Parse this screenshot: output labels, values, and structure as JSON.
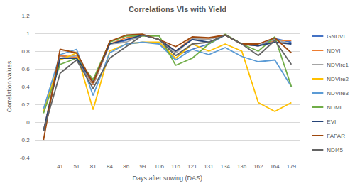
{
  "chart_data": {
    "type": "line",
    "title": "Correlations VIs with Yield",
    "x_label": "Days after sowing (DAS)",
    "y_label": "Correlation values",
    "categories": [
      null,
      "41",
      "51",
      "81",
      "84",
      "86",
      "99",
      "106",
      "116",
      "121",
      "131",
      "134",
      "136",
      "162",
      "164",
      "179"
    ],
    "ylim": [
      -0.4,
      1.2
    ],
    "yticks": [
      -0.4,
      -0.2,
      0,
      0.2,
      0.4,
      0.6,
      0.8,
      1,
      1.2
    ],
    "grid": true,
    "legend": "right",
    "series": [
      {
        "name": "GNDVI",
        "color": "#4472c4",
        "values": [
          -0.1,
          0.75,
          0.72,
          0.42,
          0.88,
          0.92,
          0.98,
          0.93,
          0.75,
          0.82,
          0.88,
          0.98,
          0.88,
          0.86,
          0.94,
          0.9
        ]
      },
      {
        "name": "NDVI",
        "color": "#ed7d31",
        "values": [
          -0.1,
          0.75,
          0.73,
          0.42,
          0.88,
          0.95,
          0.98,
          0.93,
          0.8,
          0.95,
          0.94,
          0.98,
          0.88,
          0.86,
          0.92,
          0.92
        ]
      },
      {
        "name": "NDVIre1",
        "color": "#a5a5a5",
        "values": [
          -0.1,
          0.72,
          0.75,
          0.43,
          0.88,
          0.9,
          0.98,
          0.93,
          0.78,
          0.94,
          0.93,
          0.98,
          0.88,
          0.86,
          0.93,
          0.88
        ]
      },
      {
        "name": "NDVIre2",
        "color": "#ffc000",
        "values": [
          0.12,
          0.7,
          0.78,
          0.14,
          0.8,
          0.88,
          0.9,
          0.9,
          0.72,
          0.88,
          0.8,
          0.88,
          0.8,
          0.22,
          0.12,
          0.22
        ]
      },
      {
        "name": "NDVIre3",
        "color": "#5b9bd5",
        "values": [
          0.15,
          0.76,
          0.82,
          0.3,
          0.78,
          0.88,
          0.9,
          0.88,
          0.7,
          0.82,
          0.76,
          0.84,
          0.74,
          0.68,
          0.7,
          0.4
        ]
      },
      {
        "name": "NDMI",
        "color": "#70ad47",
        "values": [
          0.1,
          0.65,
          0.72,
          0.48,
          0.9,
          0.97,
          0.97,
          0.97,
          0.64,
          0.72,
          0.88,
          0.99,
          0.88,
          0.8,
          0.96,
          0.4
        ]
      },
      {
        "name": "EVI",
        "color": "#264478",
        "values": [
          -0.1,
          0.72,
          0.72,
          0.45,
          0.88,
          0.93,
          0.98,
          0.93,
          0.8,
          0.93,
          0.9,
          0.98,
          0.88,
          0.86,
          0.9,
          0.88
        ]
      },
      {
        "name": "FAPAR",
        "color": "#9e480e",
        "values": [
          -0.2,
          0.82,
          0.78,
          0.44,
          0.91,
          0.98,
          0.99,
          0.93,
          0.85,
          0.96,
          0.95,
          0.98,
          0.88,
          0.88,
          0.95,
          0.78
        ]
      },
      {
        "name": "NDI45",
        "color": "#636363",
        "values": [
          -0.1,
          0.55,
          0.7,
          0.38,
          0.72,
          0.85,
          0.98,
          0.93,
          0.75,
          0.88,
          0.9,
          0.98,
          0.88,
          0.75,
          0.92,
          0.65
        ]
      }
    ]
  }
}
